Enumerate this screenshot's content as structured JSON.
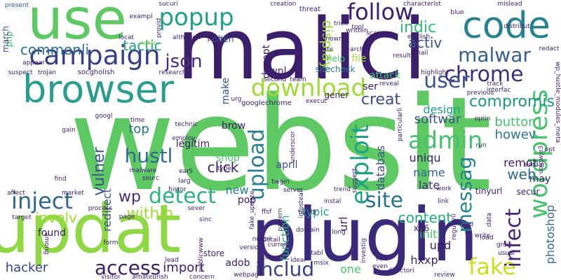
{
  "words": [
    {
      "text": "websit",
      "color": "#5ec962"
    },
    {
      "text": "malici",
      "color": "#3b1f6b"
    },
    {
      "text": "plugin",
      "color": "#3b2a7a"
    },
    {
      "text": "updat",
      "color": "#8fd744"
    },
    {
      "text": "use",
      "color": "#5ec962"
    },
    {
      "text": "browser",
      "color": "#2a9d8f"
    },
    {
      "text": "campaign",
      "color": "#3b3f86"
    },
    {
      "text": "popup",
      "color": "#1f9e89"
    },
    {
      "text": "follow",
      "color": "#3b1f6b"
    },
    {
      "text": "code",
      "color": "#26828e"
    },
    {
      "text": "malwar",
      "color": "#35608d"
    },
    {
      "text": "chrome",
      "color": "#3e2d7a"
    },
    {
      "text": "download",
      "color": "#a0da39"
    },
    {
      "text": "user",
      "color": "#3b528b"
    },
    {
      "text": "wordpress",
      "color": "#4ac16d"
    },
    {
      "text": "admin",
      "color": "#4ac16d"
    },
    {
      "text": "inject",
      "color": "#31688e"
    },
    {
      "text": "detect",
      "color": "#2db27d"
    },
    {
      "text": "hustl",
      "color": "#306a8e"
    },
    {
      "text": "upload",
      "color": "#287d8e"
    },
    {
      "text": "exploit",
      "color": "#1fa187"
    },
    {
      "text": "messag",
      "color": "#26828e"
    },
    {
      "text": "site",
      "color": "#2c728e"
    },
    {
      "text": "access",
      "color": "#3b1f6b"
    },
    {
      "text": "includ",
      "color": "#3b3f86"
    },
    {
      "text": "fake",
      "color": "#c8e020"
    },
    {
      "text": "infect",
      "color": "#482475"
    },
    {
      "text": "compromis",
      "color": "#1f968b"
    },
    {
      "text": "json",
      "color": "#472c7a"
    },
    {
      "text": "commonli",
      "color": "#2c728e"
    },
    {
      "text": "tactic",
      "color": "#1fa187"
    },
    {
      "text": "display",
      "color": "#a0da39"
    },
    {
      "text": "activ",
      "color": "#3b528b"
    },
    {
      "text": "indic",
      "color": "#35b779"
    },
    {
      "text": "creat",
      "color": "#3e4989"
    },
    {
      "text": "softwar",
      "color": "#3b528b"
    },
    {
      "text": "button",
      "color": "#4ac16d"
    },
    {
      "text": "howev",
      "color": "#2a788e"
    },
    {
      "text": "design",
      "color": "#1fa187"
    },
    {
      "text": "content",
      "color": "#27ad81"
    },
    {
      "text": "photoshop",
      "color": "#31688e"
    },
    {
      "text": "wp",
      "color": "#472c7a"
    },
    {
      "text": "vulner",
      "color": "#3b528b"
    },
    {
      "text": "click",
      "color": "#3b1f6b"
    },
    {
      "text": "new",
      "color": "#277f8e"
    },
    {
      "text": "top",
      "color": "#2c728e"
    },
    {
      "text": "involv",
      "color": "#a0da39"
    },
    {
      "text": "import",
      "color": "#3b1f6b"
    },
    {
      "text": "hacker",
      "color": "#3b3f86"
    },
    {
      "text": "within",
      "color": "#a0da39"
    },
    {
      "text": "redirect",
      "color": "#3b528b"
    },
    {
      "text": "databas",
      "color": "#3b528b"
    },
    {
      "text": "uniqu",
      "color": "#3b1f6b"
    },
    {
      "text": "name",
      "color": "#31688e"
    },
    {
      "text": "late",
      "color": "#472c7a"
    },
    {
      "text": "remot",
      "color": "#3b1f6b"
    },
    {
      "text": "function",
      "color": "#2db27d"
    },
    {
      "text": "typic",
      "color": "#1fa187"
    },
    {
      "text": "url",
      "color": "#3b1f6b"
    },
    {
      "text": "initi",
      "color": "#4ac16d"
    },
    {
      "text": "upd",
      "color": "#3b1f6b"
    },
    {
      "text": "hxxp",
      "color": "#3b1f6b"
    },
    {
      "text": "one",
      "color": "#4ac16d"
    },
    {
      "text": "adob",
      "color": "#3b1f6b"
    },
    {
      "text": "shop",
      "color": "#4ac16d"
    },
    {
      "text": "brow",
      "color": "#3b1f6b"
    },
    {
      "text": "april",
      "color": "#3b528b"
    },
    {
      "text": "make",
      "color": "#3b528b"
    },
    {
      "text": "decept",
      "color": "#3b1f6b"
    },
    {
      "text": "dwnl",
      "color": "#3b1f6b"
    },
    {
      "text": "sitecheck",
      "color": "#26828e"
    },
    {
      "text": "help",
      "color": "#4ac16d"
    },
    {
      "text": "file",
      "color": "#a0da39"
    },
    {
      "text": "ser",
      "color": "#3b1f6b"
    },
    {
      "text": "attack",
      "color": "#4ac16d"
    },
    {
      "text": "may",
      "color": "#3b1f6b"
    },
    {
      "text": "web",
      "color": "#31688e"
    },
    {
      "text": "secur",
      "color": "#3b1f6b"
    },
    {
      "text": "pop",
      "color": "#3b1f6b"
    },
    {
      "text": "found",
      "color": "#3b1f6b"
    },
    {
      "text": "x86",
      "color": "#3b1f6b"
    },
    {
      "text": "legitim",
      "color": "#3b1f6b"
    },
    {
      "text": "tinyurl",
      "color": "#3b1f6b"
    },
    {
      "text": "often",
      "color": "#3b528b"
    },
    {
      "text": "googlechrome",
      "color": "#3b1f6b"
    },
    {
      "text": "gener",
      "color": "#3b1f6b"
    },
    {
      "text": "store",
      "color": "#3b1f6b"
    },
    {
      "text": "php",
      "color": "#35b779"
    },
    {
      "text": "march",
      "color": "#3b528b"
    },
    {
      "text": "present",
      "color": "#3b528b"
    },
    {
      "text": "natur",
      "color": "#8fd744"
    },
    {
      "text": "socgholish",
      "color": "#3b1f6b"
    },
    {
      "text": "trojan",
      "color": "#3b1f6b"
    },
    {
      "text": "suspect",
      "color": "#3b1f6b"
    },
    {
      "text": "research",
      "color": "#3b1f6b"
    },
    {
      "text": "second",
      "color": "#3b1f6b"
    },
    {
      "text": "team",
      "color": "#3b1f6b"
    },
    {
      "text": "creation",
      "color": "#3b1f6b"
    },
    {
      "text": "threat",
      "color": "#3b1f6b"
    },
    {
      "text": "trick",
      "color": "#3b1f6b"
    },
    {
      "text": "tool",
      "color": "#3b1f6b"
    },
    {
      "text": "known",
      "color": "#3b1f6b"
    },
    {
      "text": "written",
      "color": "#3b1f6b"
    },
    {
      "text": "archiv",
      "color": "#3b1f6b"
    },
    {
      "text": "date",
      "color": "#3b1f6b"
    },
    {
      "text": "scanner",
      "color": "#3b1f6b"
    },
    {
      "text": "english",
      "color": "#3b1f6b"
    },
    {
      "text": "email",
      "color": "#3b1f6b"
    },
    {
      "text": "result",
      "color": "#3b1f6b"
    },
    {
      "text": "blue",
      "color": "#3b1f6b"
    },
    {
      "text": "mislead",
      "color": "#3b1f6b"
    },
    {
      "text": "distribut",
      "color": "#3b1f6b"
    },
    {
      "text": "redact",
      "color": "#3b1f6b"
    },
    {
      "text": "wp_hustle_modules_meta",
      "color": "#3b1f6b"
    },
    {
      "text": "interfac",
      "color": "#3b1f6b"
    },
    {
      "text": "track",
      "color": "#3b1f6b"
    },
    {
      "text": "previous",
      "color": "#3b1f6b"
    },
    {
      "text": "highlight",
      "color": "#3b1f6b"
    },
    {
      "text": "reveal",
      "color": "#3b1f6b"
    },
    {
      "text": "particularli",
      "color": "#3b1f6b"
    },
    {
      "text": "optin",
      "color": "#3b1f6b"
    },
    {
      "text": "uoiqwje3",
      "color": "#3b1f6b"
    },
    {
      "text": "technic",
      "color": "#3b1f6b"
    },
    {
      "text": "employ",
      "color": "#3b1f6b"
    },
    {
      "text": "time",
      "color": "#3b1f6b"
    },
    {
      "text": "googl",
      "color": "#3b1f6b"
    },
    {
      "text": "gain",
      "color": "#3b1f6b"
    },
    {
      "text": "malware",
      "color": "#3b1f6b"
    },
    {
      "text": "sourc",
      "color": "#3b1f6b"
    },
    {
      "text": "earli",
      "color": "#3b1f6b"
    },
    {
      "text": "larg",
      "color": "#3b1f6b"
    },
    {
      "text": "find",
      "color": "#3b1f6b"
    },
    {
      "text": "affect",
      "color": "#3b1f6b"
    },
    {
      "text": "market",
      "color": "#3b1f6b"
    },
    {
      "text": "target",
      "color": "#3b1f6b"
    },
    {
      "text": "among",
      "color": "#3b1f6b"
    },
    {
      "text": "histor",
      "color": "#3b1f6b"
    },
    {
      "text": "sever",
      "color": "#3b1f6b"
    },
    {
      "text": "process",
      "color": "#3b1f6b"
    },
    {
      "text": "page",
      "color": "#3b1f6b"
    },
    {
      "text": "form",
      "color": "#3b1f6b"
    },
    {
      "text": "lead",
      "color": "#3b1f6b"
    },
    {
      "text": "publicwww",
      "color": "#3b1f6b"
    },
    {
      "text": "visitor",
      "color": "#3b1f6b"
    },
    {
      "text": "amateurish",
      "color": "#3b1f6b"
    },
    {
      "text": "concern",
      "color": "#3b1f6b"
    },
    {
      "text": "webpag",
      "color": "#3b1f6b"
    },
    {
      "text": "sinc",
      "color": "#3b1f6b"
    },
    {
      "text": "fake_update",
      "color": "#3b1f6b"
    },
    {
      "text": "version",
      "color": "#3b1f6b"
    },
    {
      "text": "ffsf",
      "color": "#3b1f6b"
    },
    {
      "text": "detail",
      "color": "#3b1f6b"
    },
    {
      "text": "notori",
      "color": "#3b1f6b"
    },
    {
      "text": "current",
      "color": "#3b1f6b"
    },
    {
      "text": "compon",
      "color": "#3b1f6b"
    },
    {
      "text": "ideal",
      "color": "#3b1f6b"
    },
    {
      "text": "msix",
      "color": "#3b1f6b"
    },
    {
      "text": "domain",
      "color": "#3b1f6b"
    },
    {
      "text": "tabl",
      "color": "#3b1f6b"
    },
    {
      "text": "infosteal",
      "color": "#3b1f6b"
    },
    {
      "text": "instal",
      "color": "#3b1f6b"
    },
    {
      "text": "hundr",
      "color": "#3b1f6b"
    },
    {
      "text": "trend",
      "color": "#3b1f6b"
    },
    {
      "text": "long",
      "color": "#3b1f6b"
    },
    {
      "text": "investig",
      "color": "#3b1f6b"
    },
    {
      "text": "serv",
      "color": "#3b1f6b"
    },
    {
      "text": "even",
      "color": "#3b1f6b"
    },
    {
      "text": "directori",
      "color": "#3b1f6b"
    },
    {
      "text": "review",
      "color": "#3b1f6b"
    },
    {
      "text": "server",
      "color": "#3b1f6b"
    },
    {
      "text": "underscor",
      "color": "#3b1f6b"
    },
    {
      "text": "urg",
      "color": "#3b1f6b"
    },
    {
      "text": "begin",
      "color": "#3b1f6b"
    },
    {
      "text": "suggest",
      "color": "#3b1f6b"
    },
    {
      "text": "type",
      "color": "#3b1f6b"
    },
    {
      "text": "execut",
      "color": "#3b1f6b"
    },
    {
      "text": "link",
      "color": "#3b1f6b"
    },
    {
      "text": "regularli",
      "color": "#3b1f6b"
    },
    {
      "text": "read",
      "color": "#3b1f6b"
    },
    {
      "text": "work",
      "color": "#3b1f6b"
    },
    {
      "text": "write",
      "color": "#3b1f6b"
    },
    {
      "text": "load",
      "color": "#3b1f6b"
    },
    {
      "text": "grow",
      "color": "#3b1f6b"
    },
    {
      "text": "usual",
      "color": "#3b1f6b"
    },
    {
      "text": "pattern",
      "color": "#3b1f6b"
    },
    {
      "text": "similar",
      "color": "#3b1f6b"
    },
    {
      "text": "run",
      "color": "#3b1f6b"
    },
    {
      "text": "opt",
      "color": "#3b1f6b"
    },
    {
      "text": "sucuri",
      "color": "#3b1f6b"
    },
    {
      "text": "although",
      "color": "#3b1f6b"
    },
    {
      "text": "poor",
      "color": "#3b1f6b"
    },
    {
      "text": "exampl",
      "color": "#3b1f6b"
    },
    {
      "text": "provid",
      "color": "#3b1f6b"
    },
    {
      "text": "locat",
      "color": "#3b1f6b"
    },
    {
      "text": "characterist",
      "color": "#3b1f6b"
    },
    {
      "text": "appear",
      "color": "#3b1f6b"
    },
    {
      "text": "data",
      "color": "#3b1f6b"
    }
  ]
}
